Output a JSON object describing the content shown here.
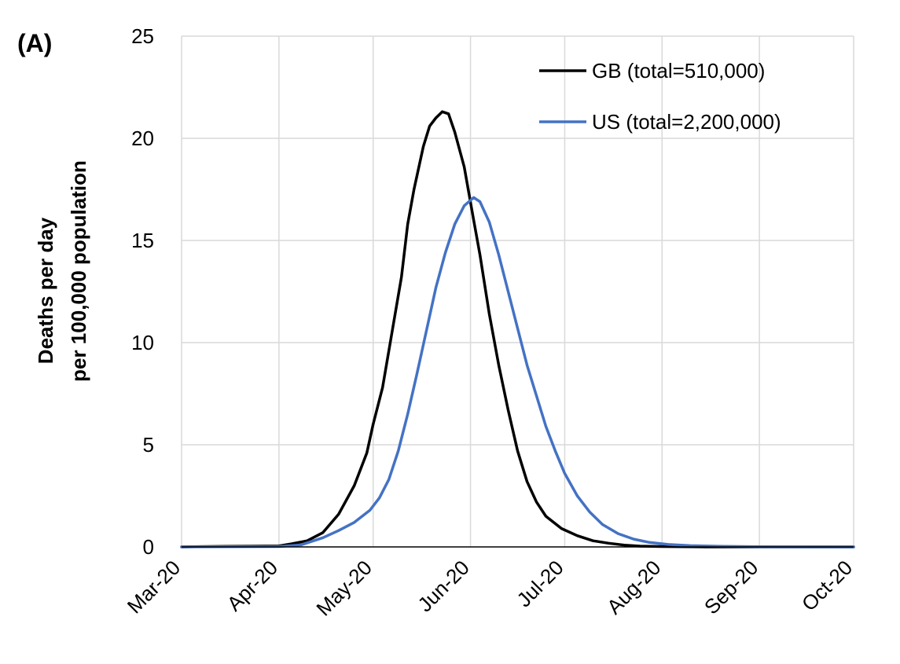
{
  "panel_label": "(A)",
  "chart_data": {
    "type": "line",
    "title": "",
    "xlabel": "",
    "ylabel_lines": [
      "Deaths per day",
      "per 100,000 population"
    ],
    "ylim": [
      0,
      25
    ],
    "yticks": [
      0,
      5,
      10,
      15,
      20,
      25
    ],
    "x_domain": [
      "2020-03-01",
      "2020-10-01"
    ],
    "x_ticks": [
      {
        "date": "2020-03-01",
        "label": "Mar-20"
      },
      {
        "date": "2020-04-01",
        "label": "Apr-20"
      },
      {
        "date": "2020-05-01",
        "label": "May-20"
      },
      {
        "date": "2020-06-01",
        "label": "Jun-20"
      },
      {
        "date": "2020-07-01",
        "label": "Jul-20"
      },
      {
        "date": "2020-08-01",
        "label": "Aug-20"
      },
      {
        "date": "2020-09-01",
        "label": "Sep-20"
      },
      {
        "date": "2020-10-01",
        "label": "Oct-20"
      }
    ],
    "grid": true,
    "legend_position": "top-right",
    "series": [
      {
        "name": "GB (total=510,000)",
        "color": "#000000",
        "points": [
          [
            "2020-03-01",
            0
          ],
          [
            "2020-03-15",
            0.03
          ],
          [
            "2020-04-01",
            0.05
          ],
          [
            "2020-04-05",
            0.15
          ],
          [
            "2020-04-10",
            0.3
          ],
          [
            "2020-04-15",
            0.7
          ],
          [
            "2020-04-20",
            1.6
          ],
          [
            "2020-04-25",
            3.0
          ],
          [
            "2020-04-29",
            4.6
          ],
          [
            "2020-05-01",
            6.0
          ],
          [
            "2020-05-04",
            7.8
          ],
          [
            "2020-05-07",
            10.5
          ],
          [
            "2020-05-10",
            13.2
          ],
          [
            "2020-05-12",
            15.8
          ],
          [
            "2020-05-14",
            17.5
          ],
          [
            "2020-05-17",
            19.6
          ],
          [
            "2020-05-19",
            20.6
          ],
          [
            "2020-05-21",
            21.0
          ],
          [
            "2020-05-23",
            21.3
          ],
          [
            "2020-05-25",
            21.2
          ],
          [
            "2020-05-27",
            20.3
          ],
          [
            "2020-05-30",
            18.6
          ],
          [
            "2020-06-02",
            16.0
          ],
          [
            "2020-06-04",
            14.3
          ],
          [
            "2020-06-07",
            11.4
          ],
          [
            "2020-06-10",
            8.9
          ],
          [
            "2020-06-13",
            6.7
          ],
          [
            "2020-06-16",
            4.7
          ],
          [
            "2020-06-19",
            3.2
          ],
          [
            "2020-06-22",
            2.2
          ],
          [
            "2020-06-25",
            1.5
          ],
          [
            "2020-06-30",
            0.9
          ],
          [
            "2020-07-05",
            0.55
          ],
          [
            "2020-07-10",
            0.3
          ],
          [
            "2020-07-15",
            0.18
          ],
          [
            "2020-07-20",
            0.09
          ],
          [
            "2020-07-25",
            0.04
          ],
          [
            "2020-08-01",
            0.02
          ],
          [
            "2020-08-15",
            0
          ],
          [
            "2020-10-01",
            0
          ]
        ]
      },
      {
        "name": "US (total=2,200,000)",
        "color": "#4472c4",
        "points": [
          [
            "2020-03-01",
            0
          ],
          [
            "2020-04-01",
            0.02
          ],
          [
            "2020-04-08",
            0.1
          ],
          [
            "2020-04-15",
            0.45
          ],
          [
            "2020-04-20",
            0.8
          ],
          [
            "2020-04-25",
            1.2
          ],
          [
            "2020-04-30",
            1.8
          ],
          [
            "2020-05-03",
            2.4
          ],
          [
            "2020-05-06",
            3.3
          ],
          [
            "2020-05-09",
            4.7
          ],
          [
            "2020-05-12",
            6.5
          ],
          [
            "2020-05-15",
            8.5
          ],
          [
            "2020-05-18",
            10.6
          ],
          [
            "2020-05-21",
            12.7
          ],
          [
            "2020-05-24",
            14.4
          ],
          [
            "2020-05-27",
            15.8
          ],
          [
            "2020-05-30",
            16.7
          ],
          [
            "2020-06-02",
            17.1
          ],
          [
            "2020-06-04",
            16.9
          ],
          [
            "2020-06-07",
            15.9
          ],
          [
            "2020-06-10",
            14.3
          ],
          [
            "2020-06-13",
            12.5
          ],
          [
            "2020-06-16",
            10.7
          ],
          [
            "2020-06-19",
            8.9
          ],
          [
            "2020-06-22",
            7.4
          ],
          [
            "2020-06-25",
            5.9
          ],
          [
            "2020-06-28",
            4.7
          ],
          [
            "2020-07-01",
            3.6
          ],
          [
            "2020-07-05",
            2.5
          ],
          [
            "2020-07-09",
            1.7
          ],
          [
            "2020-07-13",
            1.1
          ],
          [
            "2020-07-18",
            0.65
          ],
          [
            "2020-07-23",
            0.38
          ],
          [
            "2020-07-28",
            0.22
          ],
          [
            "2020-08-03",
            0.12
          ],
          [
            "2020-08-10",
            0.06
          ],
          [
            "2020-08-20",
            0.03
          ],
          [
            "2020-09-01",
            0.01
          ],
          [
            "2020-10-01",
            0
          ]
        ]
      }
    ]
  }
}
